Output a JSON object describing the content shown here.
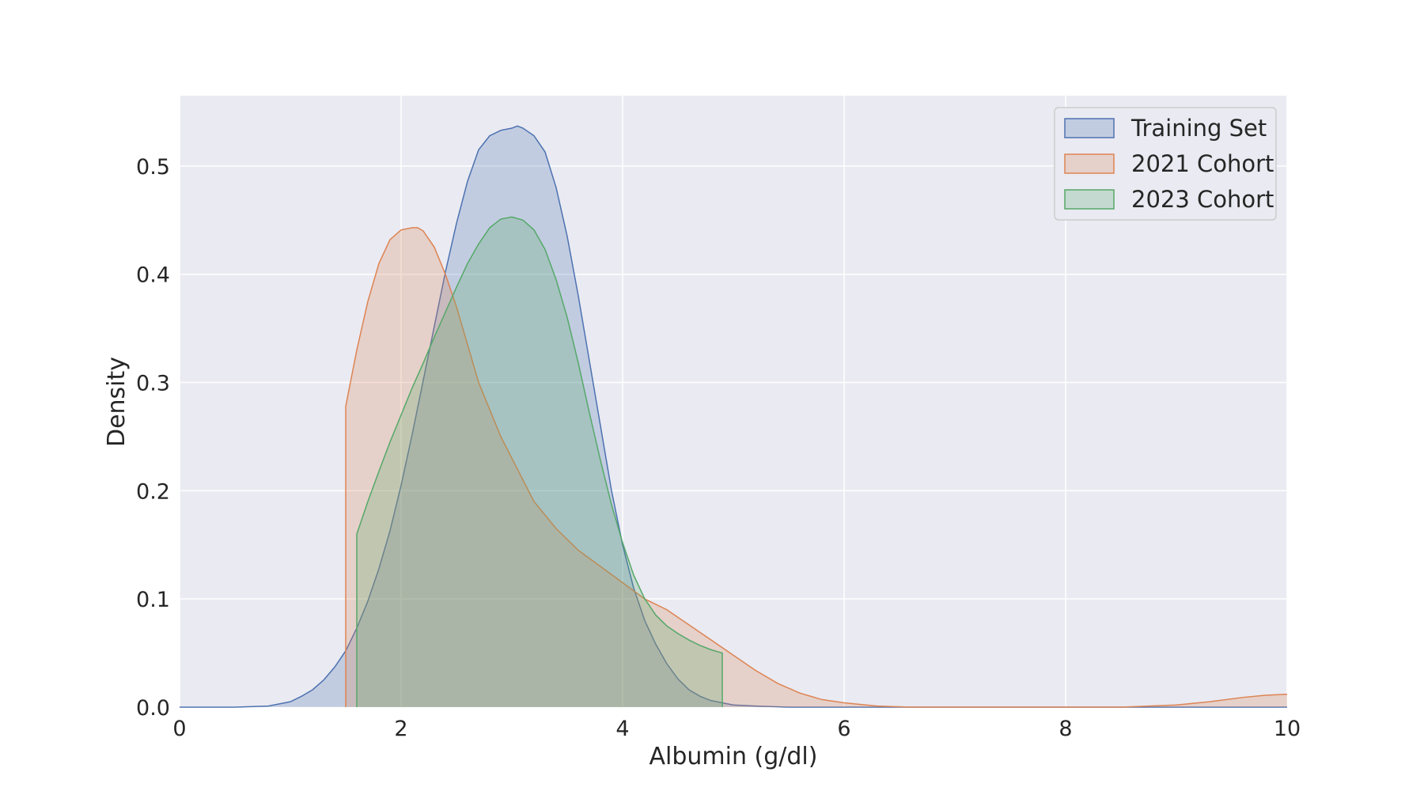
{
  "chart_data": {
    "type": "area",
    "title": "",
    "xlabel": "Albumin (g/dl)",
    "ylabel": "Density",
    "xlim": [
      0,
      10
    ],
    "ylim": [
      0,
      0.565
    ],
    "xticks": [
      0,
      2,
      4,
      6,
      8,
      10
    ],
    "yticks": [
      0.0,
      0.1,
      0.2,
      0.3,
      0.4,
      0.5
    ],
    "xtick_labels": [
      "0",
      "2",
      "4",
      "6",
      "8",
      "10"
    ],
    "ytick_labels": [
      "0.0",
      "0.1",
      "0.2",
      "0.3",
      "0.4",
      "0.5"
    ],
    "grid": true,
    "legend_position": "top-right",
    "colors": {
      "background": "#eaeaf2",
      "grid": "#ffffff"
    },
    "series": [
      {
        "name": "Training Set",
        "color": "#4c72b0",
        "x": [
          0.0,
          0.5,
          0.8,
          1.0,
          1.1,
          1.2,
          1.3,
          1.4,
          1.5,
          1.6,
          1.7,
          1.8,
          1.9,
          2.0,
          2.1,
          2.2,
          2.3,
          2.4,
          2.5,
          2.6,
          2.7,
          2.8,
          2.9,
          3.0,
          3.05,
          3.1,
          3.2,
          3.3,
          3.4,
          3.5,
          3.6,
          3.7,
          3.8,
          3.9,
          4.0,
          4.1,
          4.2,
          4.3,
          4.4,
          4.5,
          4.6,
          4.7,
          4.8,
          4.9,
          5.0,
          5.2,
          5.5,
          6.0,
          10.0
        ],
        "y": [
          0.0,
          0.0,
          0.001,
          0.005,
          0.01,
          0.016,
          0.025,
          0.037,
          0.052,
          0.073,
          0.098,
          0.128,
          0.163,
          0.205,
          0.252,
          0.302,
          0.352,
          0.402,
          0.447,
          0.486,
          0.515,
          0.528,
          0.533,
          0.535,
          0.537,
          0.535,
          0.528,
          0.513,
          0.48,
          0.435,
          0.38,
          0.32,
          0.26,
          0.2,
          0.15,
          0.11,
          0.08,
          0.058,
          0.04,
          0.026,
          0.016,
          0.01,
          0.006,
          0.004,
          0.002,
          0.001,
          0.0,
          0.0,
          0.0
        ]
      },
      {
        "name": "2021 Cohort",
        "color": "#dd8452",
        "x": [
          1.5,
          1.5,
          1.6,
          1.7,
          1.8,
          1.9,
          2.0,
          2.1,
          2.15,
          2.2,
          2.3,
          2.4,
          2.5,
          2.6,
          2.7,
          2.8,
          2.9,
          3.0,
          3.2,
          3.4,
          3.6,
          3.8,
          4.0,
          4.2,
          4.4,
          4.6,
          4.8,
          5.0,
          5.2,
          5.4,
          5.6,
          5.8,
          6.0,
          6.3,
          6.6,
          7.0,
          8.0,
          8.5,
          9.0,
          9.3,
          9.6,
          9.8,
          10.0
        ],
        "y": [
          0.0,
          0.278,
          0.33,
          0.375,
          0.41,
          0.432,
          0.441,
          0.443,
          0.443,
          0.44,
          0.425,
          0.4,
          0.37,
          0.335,
          0.3,
          0.275,
          0.25,
          0.23,
          0.19,
          0.165,
          0.145,
          0.13,
          0.115,
          0.1,
          0.09,
          0.076,
          0.062,
          0.048,
          0.034,
          0.022,
          0.013,
          0.007,
          0.004,
          0.001,
          0.0,
          0.0,
          0.0,
          0.0,
          0.002,
          0.005,
          0.009,
          0.011,
          0.012
        ]
      },
      {
        "name": "2023 Cohort",
        "color": "#55a868",
        "x": [
          1.6,
          1.6,
          1.7,
          1.8,
          1.9,
          2.0,
          2.1,
          2.2,
          2.3,
          2.4,
          2.5,
          2.6,
          2.7,
          2.8,
          2.9,
          3.0,
          3.1,
          3.2,
          3.3,
          3.4,
          3.5,
          3.6,
          3.7,
          3.8,
          3.9,
          4.0,
          4.1,
          4.2,
          4.3,
          4.4,
          4.5,
          4.6,
          4.7,
          4.8,
          4.9,
          4.9
        ],
        "y": [
          0.0,
          0.16,
          0.19,
          0.218,
          0.245,
          0.27,
          0.295,
          0.318,
          0.342,
          0.365,
          0.388,
          0.41,
          0.428,
          0.443,
          0.451,
          0.453,
          0.45,
          0.441,
          0.423,
          0.395,
          0.36,
          0.318,
          0.272,
          0.228,
          0.187,
          0.152,
          0.122,
          0.1,
          0.085,
          0.075,
          0.068,
          0.062,
          0.057,
          0.053,
          0.05,
          0.0
        ]
      }
    ]
  }
}
